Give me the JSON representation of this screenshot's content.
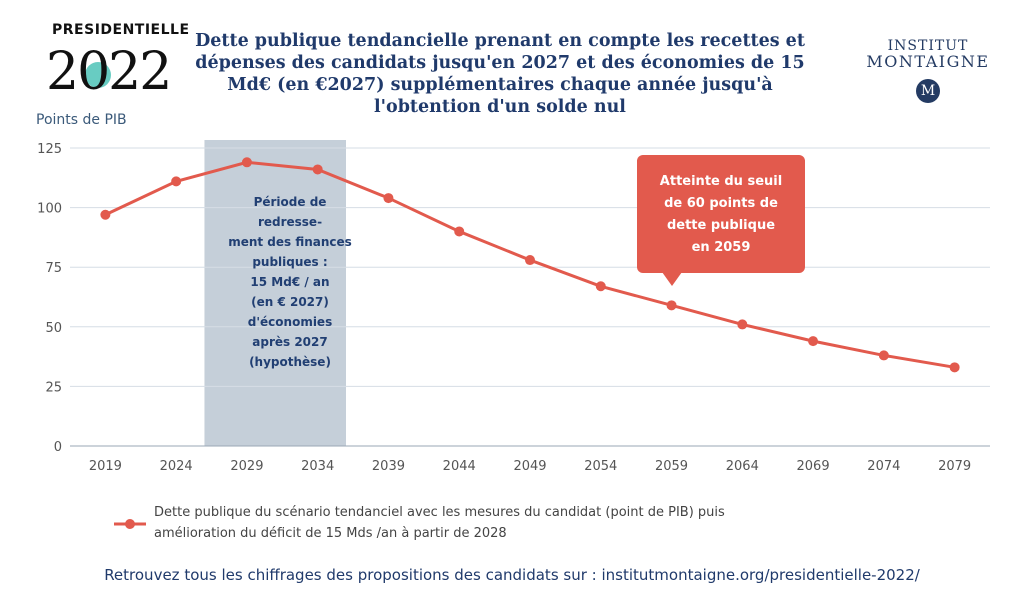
{
  "logo_left": {
    "text": "PRESIDENTIELLE",
    "year": "2022"
  },
  "logo_right": {
    "line1": "INSTITUT",
    "line2": "MONTAIGNE",
    "seal": "M"
  },
  "title_lines": [
    "Dette publique tendancielle prenant en compte les recettes et",
    "dépenses des candidats jusqu'en 2027 et des économies de 15",
    "Md€ (en €2027) supplémentaires chaque année jusqu'à",
    "l'obtention d'un solde nul"
  ],
  "shaded_period": {
    "x_range": [
      2026,
      2036
    ],
    "color": "#c5cfd9",
    "text_lines": [
      "Période de",
      "redresse-",
      "ment des finances",
      "publiques :",
      "15 Md€ / an",
      "(en € 2027)",
      "d'économies",
      "après 2027",
      "(hypothèse)"
    ]
  },
  "callout": {
    "text_lines": [
      "Atteinte du seuil",
      "de 60 points de",
      "dette publique",
      "en 2059"
    ],
    "color": "#e25a4d"
  },
  "legend": {
    "text_line1": "Dette publique du scénario tendanciel avec les mesures du candidat (point de PIB) puis",
    "text_line2": "amélioration du déficit de 15 Mds /an à partir de 2028"
  },
  "footer": "Retrouvez tous les chiffrages des propositions des candidats sur : institutmontaigne.org/presidentielle-2022/",
  "chart_data": {
    "type": "line",
    "ylabel": "Points de PIB",
    "x": [
      2019,
      2024,
      2029,
      2034,
      2039,
      2044,
      2049,
      2054,
      2059,
      2064,
      2069,
      2074,
      2079
    ],
    "xticks": [
      2019,
      2024,
      2029,
      2034,
      2039,
      2044,
      2049,
      2054,
      2059,
      2064,
      2069,
      2074,
      2079
    ],
    "ylim": [
      0,
      125
    ],
    "yticks": [
      0,
      25,
      50,
      75,
      100,
      125
    ],
    "grid": true,
    "legend_position": "bottom-left",
    "series": [
      {
        "name": "Dette publique du scénario tendanciel avec les mesures du candidat (point de PIB) puis amélioration du déficit de 15 Mds /an à partir de 2028",
        "color": "#e25a4d",
        "values": [
          97,
          111,
          119,
          116,
          104,
          90,
          78,
          67,
          59,
          51,
          44,
          38,
          33
        ]
      }
    ]
  }
}
